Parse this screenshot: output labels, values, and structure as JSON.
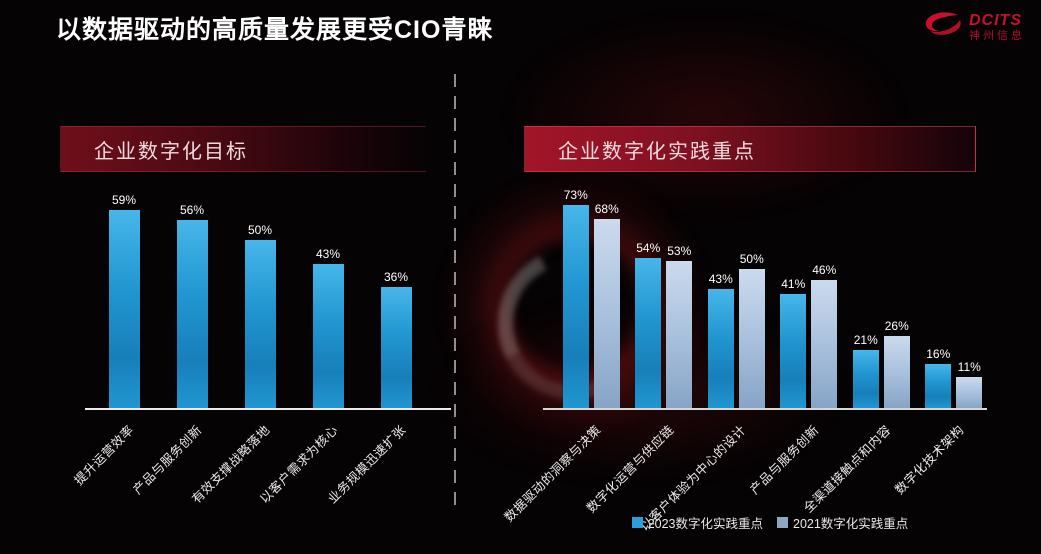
{
  "header": {
    "title": "以数据驱动的高质量发展更受CIO青睐"
  },
  "logo": {
    "brand": "DCITS",
    "company": "神州信息"
  },
  "colors": {
    "accent_red": "#c8102e",
    "bar_blue": "#29a8e0",
    "bar_gray": "#9db8d6",
    "background": "#060304"
  },
  "chart_data": [
    {
      "type": "bar",
      "title": "企业数字化目标",
      "categories": [
        "提升运营效率",
        "产品与服务创新",
        "有效支撑战略落地",
        "以客户需求为核心",
        "业务规模迅速扩张"
      ],
      "values": [
        59,
        56,
        50,
        43,
        36
      ],
      "unit": "%",
      "ylim": [
        0,
        65
      ],
      "grid": false,
      "bar_color": "#29a8e0"
    },
    {
      "type": "bar",
      "title": "企业数字化实践重点",
      "categories": [
        "数据驱动的洞察与决策",
        "数字化运营与供应链",
        "以客户体验为中心的设计",
        "产品与服务创新",
        "全渠道接触点和内容",
        "数字化技术架构"
      ],
      "series": [
        {
          "name": "2023数字化实践重点",
          "values": [
            73,
            54,
            43,
            41,
            21,
            16
          ],
          "color": "#29a8e0"
        },
        {
          "name": "2021数字化实践重点",
          "values": [
            68,
            53,
            50,
            46,
            26,
            11
          ],
          "color": "#9db8d6"
        }
      ],
      "unit": "%",
      "ylim": [
        0,
        80
      ],
      "grid": false,
      "legend_position": "bottom"
    }
  ]
}
